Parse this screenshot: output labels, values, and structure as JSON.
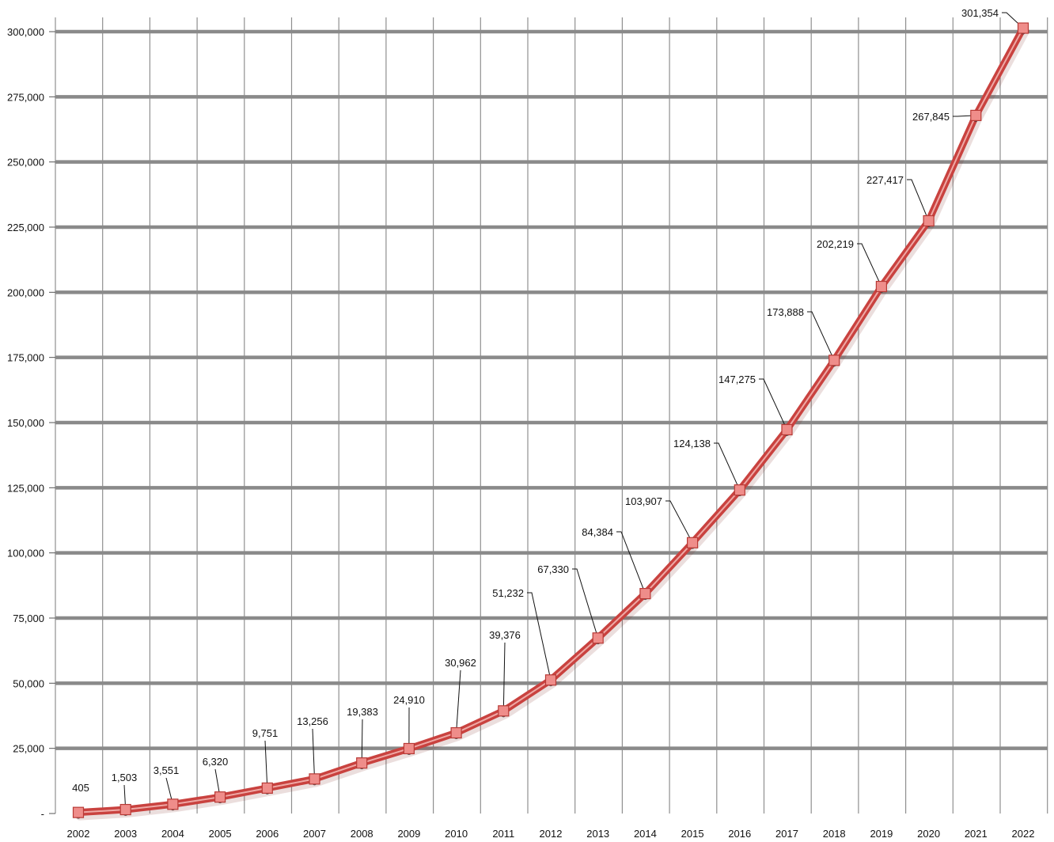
{
  "chart_data": {
    "type": "line",
    "title": "",
    "xlabel": "",
    "ylabel": "",
    "x": [
      "2002",
      "2003",
      "2004",
      "2005",
      "2006",
      "2007",
      "2008",
      "2009",
      "2010",
      "2011",
      "2012",
      "2013",
      "2014",
      "2015",
      "2016",
      "2017",
      "2018",
      "2019",
      "2020",
      "2021",
      "2022"
    ],
    "series": [
      {
        "values": [
          405,
          1503,
          3551,
          6320,
          9751,
          13256,
          19383,
          24910,
          30962,
          39376,
          51232,
          67330,
          84384,
          103907,
          124138,
          147275,
          173888,
          202219,
          227417,
          267845,
          301354
        ]
      }
    ],
    "data_labels": [
      "405",
      "1,503",
      "3,551",
      "6,320",
      "9,751",
      "13,256",
      "19,383",
      "24,910",
      "30,962",
      "39,376",
      "51,232",
      "67,330",
      "84,384",
      "103,907",
      "124,138",
      "147,275",
      "173,888",
      "202,219",
      "227,417",
      "267,845",
      "301,354"
    ],
    "y_ticks": [
      "-",
      "25,000",
      "50,000",
      "75,000",
      "100,000",
      "125,000",
      "150,000",
      "175,000",
      "200,000",
      "225,000",
      "250,000",
      "275,000",
      "300,000"
    ],
    "ylim": [
      0,
      300000
    ],
    "grid": true,
    "legend": "none",
    "colors": {
      "line": "#c9423f",
      "line_highlight": "#f3b5b1",
      "marker_fill": "#ef8d8a",
      "marker_stroke": "#b83a36",
      "grid_major": "#8a8a8a",
      "grid_minor": "#8f8f8f"
    }
  }
}
